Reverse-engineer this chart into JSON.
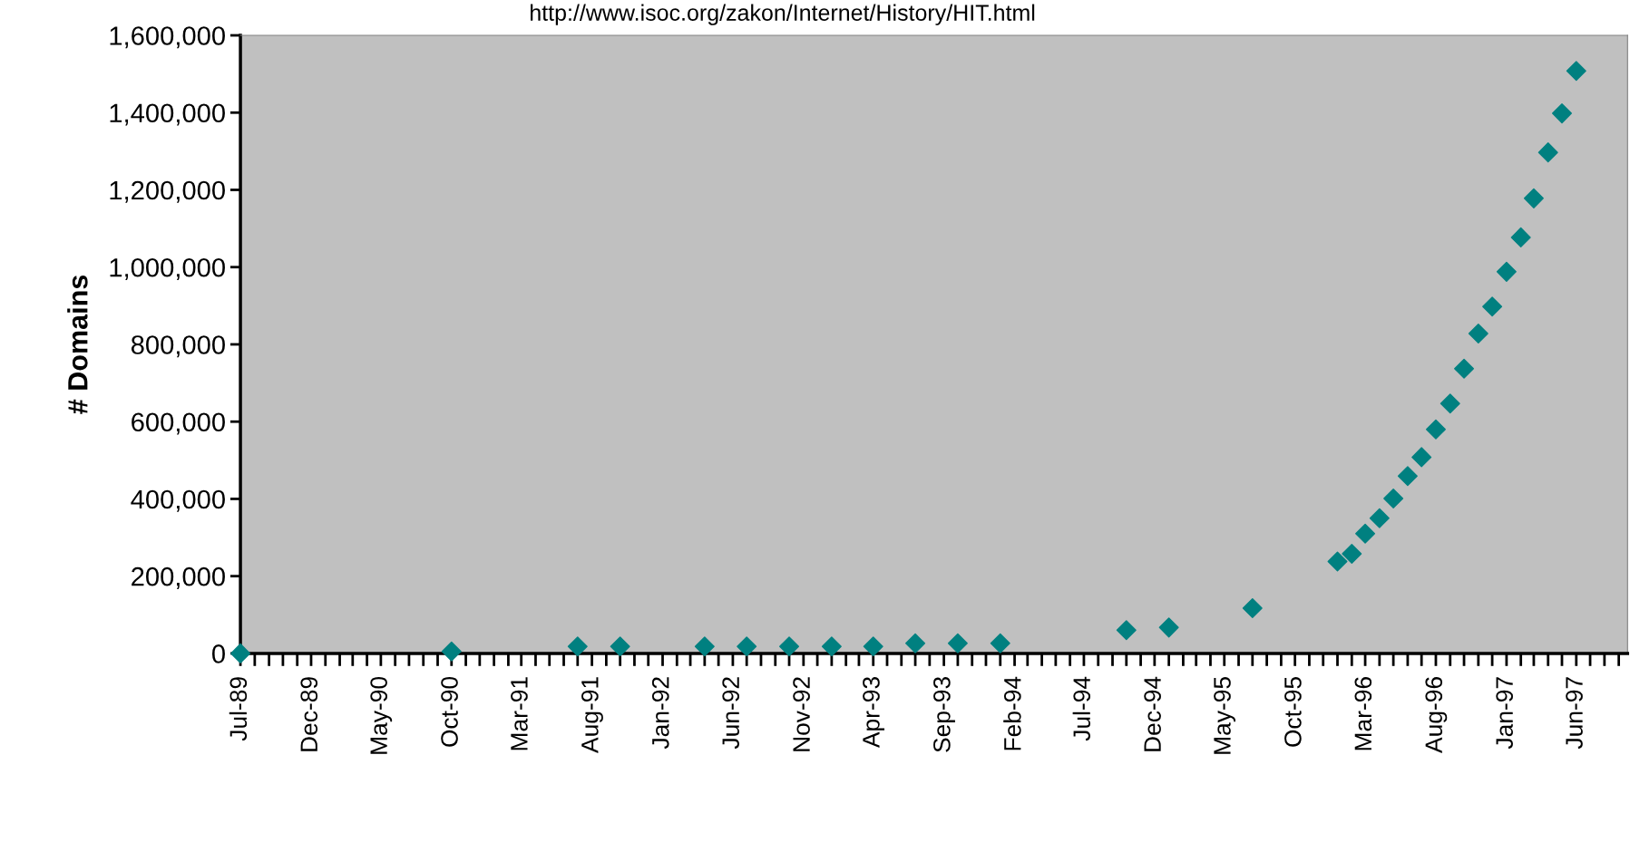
{
  "chart_data": {
    "type": "scatter",
    "subtitle": "http://www.isoc.org/zakon/Internet/History/HIT.html",
    "ylabel": "# Domains",
    "x": [
      "1989-07",
      "1990-10",
      "1991-07",
      "1991-10",
      "1992-04",
      "1992-07",
      "1992-10",
      "1993-01",
      "1993-04",
      "1993-07",
      "1993-10",
      "1994-01",
      "1994-10",
      "1995-01",
      "1995-07",
      "1996-01",
      "1996-02",
      "1996-03",
      "1996-04",
      "1996-05",
      "1996-06",
      "1996-07",
      "1996-08",
      "1996-09",
      "1996-10",
      "1996-11",
      "1996-12",
      "1997-01",
      "1997-02",
      "1997-03",
      "1997-04",
      "1997-05",
      "1997-06"
    ],
    "series": [
      {
        "color": "#008080",
        "values": [
          0,
          5000,
          18000,
          18000,
          18000,
          18000,
          18000,
          18000,
          18000,
          26000,
          26000,
          26000,
          60000,
          67000,
          117000,
          238000,
          258000,
          310000,
          350000,
          401000,
          459000,
          508000,
          580000,
          647000,
          737000,
          828000,
          898000,
          988000,
          1077000,
          1178000,
          1297000,
          1398000,
          1508000
        ]
      }
    ],
    "marker": "diamond",
    "grid": false,
    "xlim": [
      "1989-07-01",
      "1997-09-20"
    ],
    "xticks": [
      {
        "value": "1989-07",
        "label": "Jul-89"
      },
      {
        "value": "1989-12",
        "label": "Dec-89"
      },
      {
        "value": "1990-05",
        "label": "May-90"
      },
      {
        "value": "1990-10",
        "label": "Oct-90"
      },
      {
        "value": "1991-03",
        "label": "Mar-91"
      },
      {
        "value": "1991-08",
        "label": "Aug-91"
      },
      {
        "value": "1992-01",
        "label": "Jan-92"
      },
      {
        "value": "1992-06",
        "label": "Jun-92"
      },
      {
        "value": "1992-11",
        "label": "Nov-92"
      },
      {
        "value": "1993-04",
        "label": "Apr-93"
      },
      {
        "value": "1993-09",
        "label": "Sep-93"
      },
      {
        "value": "1994-02",
        "label": "Feb-94"
      },
      {
        "value": "1994-07",
        "label": "Jul-94"
      },
      {
        "value": "1994-12",
        "label": "Dec-94"
      },
      {
        "value": "1995-05",
        "label": "May-95"
      },
      {
        "value": "1995-10",
        "label": "Oct-95"
      },
      {
        "value": "1996-03",
        "label": "Mar-96"
      },
      {
        "value": "1996-08",
        "label": "Aug-96"
      },
      {
        "value": "1997-01",
        "label": "Jan-97"
      },
      {
        "value": "1997-06",
        "label": "Jun-97"
      }
    ],
    "ylim": [
      0,
      1600000
    ],
    "yticks": [
      0,
      {
        "value": 200000,
        "label": "200,000"
      },
      {
        "value": 400000,
        "label": "400,000"
      },
      {
        "value": 600000,
        "label": "600,000"
      },
      {
        "value": 800000,
        "label": "800,000"
      },
      {
        "value": 1000000,
        "label": "1,000,000"
      },
      {
        "value": 1200000,
        "label": "1,200,000"
      },
      {
        "value": 1400000,
        "label": "1,400,000"
      },
      {
        "value": 1600000,
        "label": "1,600,000"
      }
    ]
  }
}
